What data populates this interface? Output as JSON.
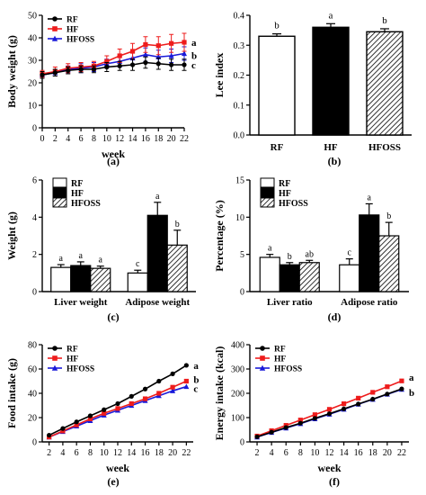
{
  "colors": {
    "RF": "#000000",
    "HF": "#ee1c1c",
    "HFOSS": "#1a1ad9"
  },
  "chart_data": [
    {
      "panel": "(a)",
      "type": "line",
      "xlabel": "week",
      "ylabel": "Body weight (g)",
      "x": [
        0,
        2,
        4,
        6,
        8,
        10,
        12,
        14,
        16,
        18,
        20,
        22
      ],
      "xticks": [
        "0",
        "2",
        "4",
        "6",
        "8",
        "10",
        "12",
        "14",
        "16",
        "18",
        "20",
        "22"
      ],
      "ylim": [
        0,
        50
      ],
      "yticks": [
        "0",
        "10",
        "20",
        "30",
        "40",
        "50"
      ],
      "series": [
        {
          "name": "RF",
          "values": [
            23.5,
            24.5,
            25.5,
            26,
            26,
            27,
            27.5,
            28,
            29,
            28.5,
            28,
            28
          ],
          "error": [
            1.5,
            1.5,
            1.5,
            1.5,
            1.5,
            2,
            2,
            2.5,
            2.5,
            2.5,
            2.5,
            2.5
          ]
        },
        {
          "name": "HF",
          "values": [
            24,
            25,
            26.5,
            27,
            27.5,
            29.5,
            32,
            34,
            37,
            36.5,
            37.5,
            38
          ],
          "error": [
            1.5,
            2,
            2,
            2,
            2,
            2.5,
            3,
            3.5,
            3.5,
            4,
            4,
            4
          ]
        },
        {
          "name": "HFOSS",
          "values": [
            23.5,
            24.5,
            26,
            26.5,
            27,
            28.5,
            29.5,
            31,
            32.5,
            31.5,
            32,
            33
          ],
          "error": [
            1.5,
            1.5,
            1.5,
            2,
            2,
            2,
            2.5,
            3,
            3,
            3,
            3,
            3
          ]
        }
      ],
      "end_labels": [
        "a",
        "b",
        "c"
      ],
      "legend": "top-left"
    },
    {
      "panel": "(b)",
      "type": "bar",
      "ylabel": "Lee index",
      "categories": [
        "RF",
        "HF",
        "HFOSS"
      ],
      "values": [
        0.33,
        0.36,
        0.345
      ],
      "error": [
        0.008,
        0.012,
        0.01
      ],
      "letters": [
        "b",
        "a",
        "b"
      ],
      "ylim": [
        0,
        0.4
      ],
      "yticks": [
        "0.0",
        "0.1",
        "0.2",
        "0.3",
        "0.4"
      ]
    },
    {
      "panel": "(c)",
      "type": "bar",
      "ylabel": "Weight (g)",
      "categories": [
        "Liver weight",
        "Adipose weight"
      ],
      "series": [
        {
          "name": "RF",
          "values": [
            1.3,
            1.0
          ],
          "error": [
            0.15,
            0.15
          ],
          "letters": [
            "a",
            "c"
          ]
        },
        {
          "name": "HF",
          "values": [
            1.4,
            4.1
          ],
          "error": [
            0.2,
            0.7
          ],
          "letters": [
            "a",
            "a"
          ]
        },
        {
          "name": "HFOSS",
          "values": [
            1.25,
            2.5
          ],
          "error": [
            0.12,
            0.8
          ],
          "letters": [
            "a",
            "b"
          ]
        }
      ],
      "ylim": [
        0,
        6
      ],
      "yticks": [
        "0",
        "2",
        "4",
        "6"
      ],
      "legend": "top-left"
    },
    {
      "panel": "(d)",
      "type": "bar",
      "ylabel": "Percentage (%)",
      "categories": [
        "Liver ratio",
        "Adipose ratio"
      ],
      "series": [
        {
          "name": "RF",
          "values": [
            4.6,
            3.6
          ],
          "error": [
            0.4,
            0.8
          ],
          "letters": [
            "a",
            "c"
          ]
        },
        {
          "name": "HF",
          "values": [
            3.6,
            10.3
          ],
          "error": [
            0.3,
            1.5
          ],
          "letters": [
            "b",
            "a"
          ]
        },
        {
          "name": "HFOSS",
          "values": [
            3.9,
            7.5
          ],
          "error": [
            0.3,
            1.8
          ],
          "letters": [
            "ab",
            "b"
          ]
        }
      ],
      "ylim": [
        0,
        15
      ],
      "yticks": [
        "0",
        "5",
        "10",
        "15"
      ],
      "legend": "top-left"
    },
    {
      "panel": "(e)",
      "type": "line",
      "xlabel": "week",
      "ylabel": "Food intake (g)",
      "x": [
        2,
        4,
        6,
        8,
        10,
        12,
        14,
        16,
        18,
        20,
        22
      ],
      "xticks": [
        "2",
        "4",
        "6",
        "8",
        "10",
        "12",
        "14",
        "16",
        "18",
        "20",
        "22"
      ],
      "ylim": [
        0,
        80
      ],
      "yticks": [
        "0",
        "20",
        "40",
        "60",
        "80"
      ],
      "series": [
        {
          "name": "RF",
          "values": [
            5.5,
            11,
            16.5,
            21.5,
            26.5,
            31.5,
            37.5,
            43.5,
            50,
            56,
            63
          ]
        },
        {
          "name": "HF",
          "values": [
            4,
            9,
            14,
            19,
            23.5,
            27.5,
            31.5,
            35.5,
            40,
            45,
            50
          ]
        },
        {
          "name": "HFOSS",
          "values": [
            4,
            8.5,
            13,
            17.5,
            22,
            26,
            30,
            34,
            38,
            42,
            45.5
          ]
        }
      ],
      "end_labels": [
        "a",
        "b",
        "c"
      ],
      "legend": "top-left"
    },
    {
      "panel": "(f)",
      "type": "line",
      "xlabel": "week",
      "ylabel": "Energy intake (kcal)",
      "x": [
        2,
        4,
        6,
        8,
        10,
        12,
        14,
        16,
        18,
        20,
        22
      ],
      "xticks": [
        "2",
        "4",
        "6",
        "8",
        "10",
        "12",
        "14",
        "16",
        "18",
        "20",
        "22"
      ],
      "ylim": [
        0,
        400
      ],
      "yticks": [
        "0",
        "100",
        "200",
        "300",
        "400"
      ],
      "series": [
        {
          "name": "RF",
          "values": [
            21,
            40,
            59,
            77,
            97,
            116,
            136,
            156,
            176,
            197,
            218
          ]
        },
        {
          "name": "HF",
          "values": [
            24,
            46,
            68,
            90,
            112,
            134,
            157,
            180,
            204,
            227,
            251
          ]
        },
        {
          "name": "HFOSS",
          "values": [
            20,
            39,
            57,
            75,
            95,
            114,
            134,
            155,
            175,
            196,
            216
          ]
        }
      ],
      "end_labels": [
        "a",
        "b"
      ],
      "legend": "top-left"
    }
  ]
}
